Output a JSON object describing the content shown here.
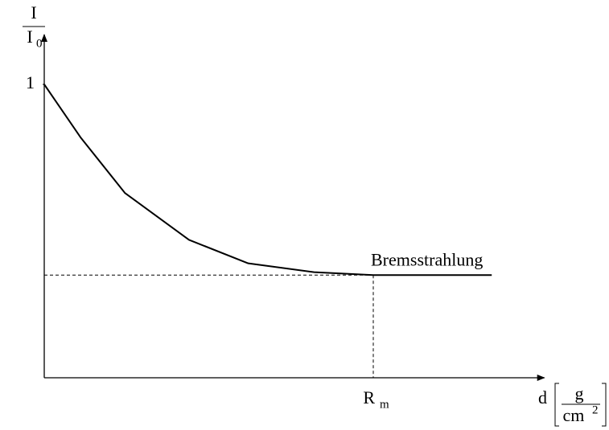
{
  "chart_data": {
    "type": "line",
    "y_label": {
      "numerator": "I",
      "denominator": "I",
      "denominator_subscript": "0"
    },
    "x_label": {
      "symbol": "d",
      "unit_numerator": "g",
      "unit_denominator": "cm",
      "unit_exponent": "2"
    },
    "x": [
      0,
      0.11,
      0.245,
      0.44,
      0.62,
      0.82,
      1,
      1.36
    ],
    "series": [
      {
        "color": "#000000",
        "values": [
          1,
          0.82,
          0.63,
          0.47,
          0.39,
          0.36,
          0.35,
          0.35
        ]
      }
    ],
    "xlim": [
      0,
      1.52
    ],
    "ylim": [
      0,
      1.17
    ],
    "yticks": [
      1
    ],
    "range_marker": {
      "value": 1,
      "label": "R",
      "subscript": "m"
    },
    "bremsstrahlung": {
      "value": 0.35,
      "label": "Bremsstrahlung"
    }
  }
}
